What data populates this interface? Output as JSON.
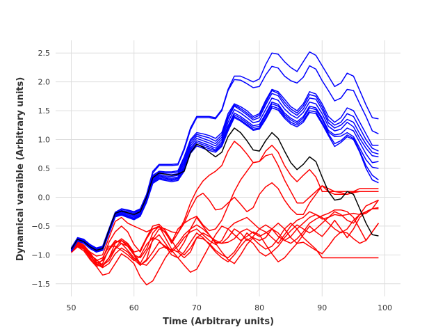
{
  "chart_data": {
    "type": "line",
    "title": "",
    "xlabel": "Time (Arbitrary units)",
    "ylabel": "Dynamical varaible (Arbitrary units)",
    "xlim": [
      47.5,
      102.5
    ],
    "ylim": [
      -1.72,
      2.72
    ],
    "xticks": [
      50,
      60,
      70,
      80,
      90,
      100
    ],
    "yticks": [
      -1.5,
      -1.0,
      -0.5,
      0.0,
      0.5,
      1.0,
      1.5,
      2.0,
      2.5
    ],
    "xtick_labels": [
      "50",
      "60",
      "70",
      "80",
      "90",
      "100"
    ],
    "ytick_labels": [
      "−1.5",
      "−1.0",
      "−0.5",
      "0.0",
      "0.5",
      "1.0",
      "1.5",
      "2.0",
      "2.5"
    ],
    "grid": true,
    "x": [
      50,
      51,
      52,
      53,
      54,
      55,
      56,
      57,
      58,
      59,
      60,
      61,
      62,
      63,
      64,
      65,
      66,
      67,
      68,
      69,
      70,
      71,
      72,
      73,
      74,
      75,
      76,
      77,
      78,
      79,
      80,
      81,
      82,
      83,
      84,
      85,
      86,
      87,
      88,
      89,
      90,
      91,
      92,
      93,
      94,
      95,
      96,
      97,
      98,
      99
    ],
    "series": [
      {
        "color": "#0000ff",
        "values": [
          -0.88,
          -0.7,
          -0.73,
          -0.82,
          -0.88,
          -0.85,
          -0.55,
          -0.26,
          -0.2,
          -0.22,
          -0.25,
          -0.2,
          0.05,
          0.45,
          0.57,
          0.57,
          0.57,
          0.58,
          0.85,
          1.2,
          1.4,
          1.4,
          1.4,
          1.38,
          1.52,
          1.87,
          2.1,
          2.1,
          2.05,
          2.0,
          2.05,
          2.3,
          2.5,
          2.48,
          2.35,
          2.25,
          2.18,
          2.35,
          2.52,
          2.46,
          2.28,
          2.1,
          1.92,
          1.98,
          2.15,
          2.1,
          1.85,
          1.6,
          1.38,
          1.36
        ]
      },
      {
        "color": "#0000ff",
        "values": [
          -0.89,
          -0.71,
          -0.74,
          -0.83,
          -0.89,
          -0.86,
          -0.56,
          -0.27,
          -0.21,
          -0.23,
          -0.26,
          -0.21,
          0.04,
          0.42,
          0.55,
          0.55,
          0.55,
          0.56,
          0.82,
          1.17,
          1.38,
          1.38,
          1.38,
          1.36,
          1.5,
          1.85,
          2.04,
          2.03,
          1.97,
          1.9,
          1.92,
          2.12,
          2.27,
          2.24,
          2.1,
          2.02,
          1.98,
          2.08,
          2.28,
          2.22,
          2.02,
          1.85,
          1.67,
          1.72,
          1.87,
          1.85,
          1.62,
          1.4,
          1.15,
          1.1
        ]
      },
      {
        "color": "#0000ff",
        "values": [
          -0.9,
          -0.72,
          -0.75,
          -0.84,
          -0.9,
          -0.87,
          -0.58,
          -0.28,
          -0.23,
          -0.25,
          -0.28,
          -0.22,
          0.02,
          0.38,
          0.45,
          0.44,
          0.44,
          0.46,
          0.7,
          1.0,
          1.12,
          1.1,
          1.07,
          1.02,
          1.12,
          1.45,
          1.62,
          1.57,
          1.5,
          1.4,
          1.45,
          1.68,
          1.87,
          1.83,
          1.7,
          1.57,
          1.5,
          1.62,
          1.83,
          1.79,
          1.62,
          1.4,
          1.3,
          1.38,
          1.55,
          1.5,
          1.3,
          1.1,
          0.9,
          0.9
        ]
      },
      {
        "color": "#0000ff",
        "values": [
          -0.9,
          -0.72,
          -0.76,
          -0.85,
          -0.91,
          -0.88,
          -0.59,
          -0.29,
          -0.24,
          -0.27,
          -0.3,
          -0.24,
          0.0,
          0.36,
          0.43,
          0.42,
          0.42,
          0.44,
          0.66,
          0.97,
          1.09,
          1.06,
          1.03,
          0.97,
          1.08,
          1.4,
          1.6,
          1.54,
          1.46,
          1.37,
          1.42,
          1.64,
          1.85,
          1.8,
          1.65,
          1.53,
          1.46,
          1.58,
          1.78,
          1.75,
          1.57,
          1.34,
          1.25,
          1.3,
          1.45,
          1.4,
          1.2,
          1.0,
          0.85,
          0.8
        ]
      },
      {
        "color": "#0000ff",
        "values": [
          -0.91,
          -0.73,
          -0.77,
          -0.86,
          -0.92,
          -0.89,
          -0.6,
          -0.3,
          -0.25,
          -0.28,
          -0.32,
          -0.26,
          -0.02,
          0.34,
          0.41,
          0.4,
          0.39,
          0.41,
          0.62,
          0.93,
          1.06,
          1.02,
          0.98,
          0.93,
          1.04,
          1.36,
          1.58,
          1.51,
          1.43,
          1.34,
          1.38,
          1.6,
          1.8,
          1.76,
          1.6,
          1.49,
          1.42,
          1.53,
          1.72,
          1.7,
          1.52,
          1.29,
          1.2,
          1.25,
          1.35,
          1.3,
          1.1,
          0.92,
          0.78,
          0.75
        ]
      },
      {
        "color": "#0000ff",
        "values": [
          -0.92,
          -0.74,
          -0.78,
          -0.87,
          -0.93,
          -0.9,
          -0.61,
          -0.31,
          -0.26,
          -0.3,
          -0.34,
          -0.28,
          -0.04,
          0.32,
          0.39,
          0.37,
          0.36,
          0.38,
          0.58,
          0.89,
          1.02,
          0.98,
          0.94,
          0.89,
          1.0,
          1.3,
          1.52,
          1.46,
          1.38,
          1.29,
          1.32,
          1.52,
          1.72,
          1.68,
          1.53,
          1.43,
          1.37,
          1.47,
          1.65,
          1.62,
          1.45,
          1.23,
          1.15,
          1.18,
          1.3,
          1.22,
          1.02,
          0.85,
          0.72,
          0.7
        ]
      },
      {
        "color": "#0000ff",
        "values": [
          -0.93,
          -0.75,
          -0.79,
          -0.88,
          -0.94,
          -0.91,
          -0.62,
          -0.32,
          -0.28,
          -0.32,
          -0.36,
          -0.3,
          -0.06,
          0.3,
          0.37,
          0.35,
          0.33,
          0.35,
          0.54,
          0.85,
          0.98,
          0.94,
          0.9,
          0.85,
          0.96,
          1.24,
          1.46,
          1.4,
          1.32,
          1.24,
          1.26,
          1.45,
          1.65,
          1.61,
          1.46,
          1.37,
          1.31,
          1.4,
          1.58,
          1.55,
          1.38,
          1.16,
          1.08,
          1.1,
          1.2,
          1.15,
          0.95,
          0.75,
          0.6,
          0.62
        ]
      },
      {
        "color": "#0000ff",
        "values": [
          -0.93,
          -0.75,
          -0.79,
          -0.88,
          -0.94,
          -0.91,
          -0.62,
          -0.33,
          -0.29,
          -0.33,
          -0.37,
          -0.31,
          -0.07,
          0.28,
          0.35,
          0.33,
          0.31,
          0.33,
          0.51,
          0.82,
          0.95,
          0.91,
          0.87,
          0.82,
          0.93,
          1.21,
          1.43,
          1.37,
          1.29,
          1.21,
          1.23,
          1.42,
          1.62,
          1.58,
          1.43,
          1.34,
          1.28,
          1.37,
          1.55,
          1.52,
          1.35,
          1.13,
          1.05,
          1.06,
          1.12,
          1.05,
          0.85,
          0.65,
          0.52,
          0.5
        ]
      },
      {
        "color": "#0000ff",
        "values": [
          -0.94,
          -0.76,
          -0.8,
          -0.89,
          -0.95,
          -0.92,
          -0.63,
          -0.34,
          -0.3,
          -0.34,
          -0.38,
          -0.32,
          -0.08,
          0.26,
          0.33,
          0.31,
          0.29,
          0.31,
          0.48,
          0.79,
          0.92,
          0.88,
          0.84,
          0.8,
          0.9,
          1.18,
          1.4,
          1.34,
          1.26,
          1.18,
          1.2,
          1.38,
          1.58,
          1.54,
          1.4,
          1.3,
          1.25,
          1.33,
          1.5,
          1.48,
          1.3,
          1.1,
          0.93,
          0.98,
          1.08,
          1.02,
          0.8,
          0.55,
          0.38,
          0.3
        ]
      },
      {
        "color": "#0000ff",
        "values": [
          -0.94,
          -0.76,
          -0.8,
          -0.89,
          -0.95,
          -0.92,
          -0.63,
          -0.34,
          -0.31,
          -0.35,
          -0.39,
          -0.33,
          -0.09,
          0.24,
          0.31,
          0.29,
          0.27,
          0.29,
          0.45,
          0.76,
          0.89,
          0.85,
          0.81,
          0.78,
          0.88,
          1.15,
          1.38,
          1.32,
          1.24,
          1.16,
          1.18,
          1.35,
          1.55,
          1.51,
          1.37,
          1.27,
          1.22,
          1.3,
          1.47,
          1.45,
          1.27,
          1.07,
          0.88,
          0.95,
          1.05,
          1.0,
          0.78,
          0.5,
          0.3,
          0.25
        ]
      },
      {
        "color": "#000000",
        "values": [
          -0.9,
          -0.73,
          -0.77,
          -0.86,
          -0.92,
          -0.89,
          -0.57,
          -0.28,
          -0.24,
          -0.27,
          -0.3,
          -0.25,
          0.0,
          0.34,
          0.42,
          0.4,
          0.38,
          0.4,
          0.45,
          0.77,
          0.92,
          0.87,
          0.78,
          0.7,
          0.78,
          1.05,
          1.2,
          1.12,
          0.98,
          0.82,
          0.8,
          0.98,
          1.12,
          1.02,
          0.8,
          0.6,
          0.48,
          0.57,
          0.7,
          0.62,
          0.35,
          0.1,
          -0.05,
          -0.03,
          0.1,
          0.05,
          -0.2,
          -0.45,
          -0.65,
          -0.67
        ]
      },
      {
        "color": "#ff0000",
        "values": [
          -0.92,
          -0.8,
          -0.86,
          -0.95,
          -1.02,
          -1.0,
          -0.7,
          -0.42,
          -0.35,
          -0.45,
          -0.5,
          -0.55,
          -0.6,
          -0.55,
          -0.5,
          -0.62,
          -0.78,
          -0.55,
          -0.45,
          -0.38,
          -0.33,
          -0.48,
          -0.58,
          -0.55,
          -0.4,
          -0.15,
          0.1,
          0.3,
          0.45,
          0.6,
          0.62,
          0.8,
          0.9,
          0.78,
          0.55,
          0.38,
          0.27,
          0.38,
          0.48,
          0.35,
          0.1,
          0.1,
          0.1,
          0.1,
          0.1,
          0.1,
          0.1,
          0.1,
          0.1,
          0.1
        ]
      },
      {
        "color": "#ff0000",
        "values": [
          -0.93,
          -0.82,
          -0.88,
          -1.0,
          -1.18,
          -1.08,
          -0.78,
          -0.6,
          -0.5,
          -0.6,
          -0.82,
          -0.95,
          -0.72,
          -0.55,
          -0.52,
          -0.55,
          -0.6,
          -0.62,
          -0.45,
          -0.2,
          0.0,
          0.07,
          -0.05,
          -0.22,
          -0.2,
          -0.1,
          0.0,
          -0.12,
          -0.25,
          -0.18,
          0.05,
          0.18,
          0.25,
          0.15,
          -0.05,
          -0.2,
          -0.3,
          -0.3,
          -0.1,
          0.05,
          0.2,
          0.15,
          0.1,
          0.08,
          0.05,
          0.1,
          0.15,
          0.15,
          0.15,
          0.15
        ]
      },
      {
        "color": "#ff0000",
        "values": [
          -0.94,
          -0.78,
          -0.84,
          -1.0,
          -1.08,
          -1.18,
          -1.1,
          -0.9,
          -0.8,
          -0.85,
          -1.0,
          -1.18,
          -1.08,
          -0.72,
          -0.55,
          -0.6,
          -0.8,
          -0.62,
          -0.4,
          -0.1,
          0.12,
          0.28,
          0.38,
          0.45,
          0.55,
          0.8,
          0.97,
          0.88,
          0.75,
          0.6,
          0.62,
          0.72,
          0.75,
          0.55,
          0.3,
          0.1,
          -0.1,
          -0.1,
          0.0,
          0.1,
          0.2,
          0.1,
          0.05,
          0.05,
          0.05,
          0.08,
          0.1,
          0.1,
          0.1,
          0.1
        ]
      },
      {
        "color": "#ff0000",
        "values": [
          -0.95,
          -0.85,
          -0.9,
          -1.05,
          -1.2,
          -1.15,
          -0.9,
          -0.75,
          -0.8,
          -0.92,
          -1.05,
          -1.15,
          -0.95,
          -0.75,
          -0.65,
          -0.8,
          -0.95,
          -0.85,
          -0.7,
          -0.6,
          -0.55,
          -0.65,
          -0.75,
          -0.82,
          -0.75,
          -0.55,
          -0.45,
          -0.4,
          -0.35,
          -0.45,
          -0.55,
          -0.6,
          -0.7,
          -0.8,
          -0.65,
          -0.5,
          -0.4,
          -0.35,
          -0.25,
          -0.3,
          -0.38,
          -0.35,
          -0.3,
          -0.32,
          -0.3,
          -0.28,
          -0.3,
          -0.28,
          -0.2,
          -0.05
        ]
      },
      {
        "color": "#ff0000",
        "values": [
          -0.95,
          -0.83,
          -0.9,
          -1.02,
          -1.15,
          -1.2,
          -1.05,
          -0.88,
          -0.75,
          -0.85,
          -1.0,
          -1.05,
          -0.9,
          -0.62,
          -0.5,
          -0.7,
          -0.9,
          -0.95,
          -0.78,
          -0.55,
          -0.35,
          -0.5,
          -0.65,
          -0.8,
          -0.95,
          -1.08,
          -1.15,
          -1.0,
          -0.82,
          -0.7,
          -0.75,
          -0.7,
          -0.55,
          -0.45,
          -0.55,
          -0.7,
          -0.8,
          -0.65,
          -0.5,
          -0.6,
          -0.68,
          -0.55,
          -0.4,
          -0.55,
          -0.7,
          -0.55,
          -0.35,
          -0.25,
          -0.2,
          -0.2
        ]
      },
      {
        "color": "#ff0000",
        "values": [
          -0.96,
          -0.86,
          -0.93,
          -1.08,
          -1.2,
          -1.35,
          -1.32,
          -1.15,
          -0.98,
          -1.05,
          -1.15,
          -1.38,
          -1.52,
          -1.45,
          -1.25,
          -1.05,
          -0.9,
          -0.95,
          -1.05,
          -0.95,
          -0.7,
          -0.62,
          -0.68,
          -0.75,
          -0.8,
          -0.78,
          -0.72,
          -0.6,
          -0.55,
          -0.62,
          -0.68,
          -0.62,
          -0.55,
          -0.62,
          -0.75,
          -0.8,
          -0.72,
          -0.6,
          -0.45,
          -0.38,
          -0.32,
          -0.28,
          -0.22,
          -0.22,
          -0.25,
          -0.35,
          -0.55,
          -0.75,
          -0.6,
          -0.45
        ]
      },
      {
        "color": "#ff0000",
        "values": [
          -0.92,
          -0.8,
          -0.85,
          -0.98,
          -1.1,
          -1.05,
          -0.85,
          -0.85,
          -0.92,
          -1.0,
          -1.1,
          -1.02,
          -0.82,
          -0.7,
          -0.75,
          -0.88,
          -0.92,
          -0.8,
          -0.65,
          -0.55,
          -0.48,
          -0.55,
          -0.65,
          -0.78,
          -0.8,
          -0.7,
          -0.55,
          -0.62,
          -0.75,
          -0.68,
          -0.55,
          -0.48,
          -0.55,
          -0.68,
          -0.75,
          -0.68,
          -0.55,
          -0.45,
          -0.35,
          -0.3,
          -0.35,
          -0.45,
          -0.55,
          -0.62,
          -0.55,
          -0.4,
          -0.3,
          -0.25,
          -0.2,
          -0.18
        ]
      },
      {
        "color": "#ff0000",
        "values": [
          -0.93,
          -0.77,
          -0.83,
          -0.96,
          -1.12,
          -1.18,
          -1.05,
          -0.8,
          -0.72,
          -0.8,
          -0.95,
          -0.92,
          -0.7,
          -0.5,
          -0.47,
          -0.58,
          -0.75,
          -0.92,
          -1.0,
          -0.88,
          -0.7,
          -0.72,
          -0.8,
          -0.92,
          -1.0,
          -1.05,
          -0.95,
          -0.78,
          -0.62,
          -0.72,
          -0.82,
          -0.9,
          -0.85,
          -0.72,
          -0.55,
          -0.45,
          -0.55,
          -0.7,
          -0.8,
          -0.9,
          -1.05,
          -1.05,
          -1.05,
          -1.05,
          -1.05,
          -1.05,
          -1.05,
          -1.05,
          -1.05,
          -1.05
        ]
      },
      {
        "color": "#ff0000",
        "values": [
          -0.94,
          -0.79,
          -0.88,
          -1.02,
          -1.14,
          -1.1,
          -0.92,
          -0.78,
          -0.75,
          -0.82,
          -0.98,
          -1.15,
          -1.18,
          -1.05,
          -0.9,
          -0.85,
          -0.92,
          -1.05,
          -1.18,
          -1.3,
          -1.25,
          -1.05,
          -0.85,
          -0.65,
          -0.5,
          -0.55,
          -0.65,
          -0.75,
          -0.68,
          -0.6,
          -0.65,
          -0.82,
          -0.98,
          -1.12,
          -1.05,
          -0.92,
          -0.8,
          -0.78,
          -0.85,
          -0.92,
          -0.98,
          -0.85,
          -0.7,
          -0.6,
          -0.62,
          -0.72,
          -0.8,
          -0.75,
          -0.6,
          -0.45
        ]
      },
      {
        "color": "#ff0000",
        "values": [
          -0.93,
          -0.82,
          -0.88,
          -1.0,
          -1.16,
          -1.22,
          -1.15,
          -0.98,
          -0.88,
          -0.95,
          -1.08,
          -1.18,
          -1.1,
          -0.95,
          -0.78,
          -0.85,
          -1.0,
          -1.05,
          -0.95,
          -0.78,
          -0.62,
          -0.7,
          -0.82,
          -0.95,
          -1.05,
          -1.12,
          -1.0,
          -0.85,
          -0.72,
          -0.8,
          -0.95,
          -1.02,
          -0.95,
          -0.85,
          -0.7,
          -0.58,
          -0.48,
          -0.55,
          -0.62,
          -0.55,
          -0.45,
          -0.35,
          -0.25,
          -0.3,
          -0.4,
          -0.45,
          -0.3,
          -0.15,
          -0.1,
          -0.05
        ]
      }
    ]
  }
}
